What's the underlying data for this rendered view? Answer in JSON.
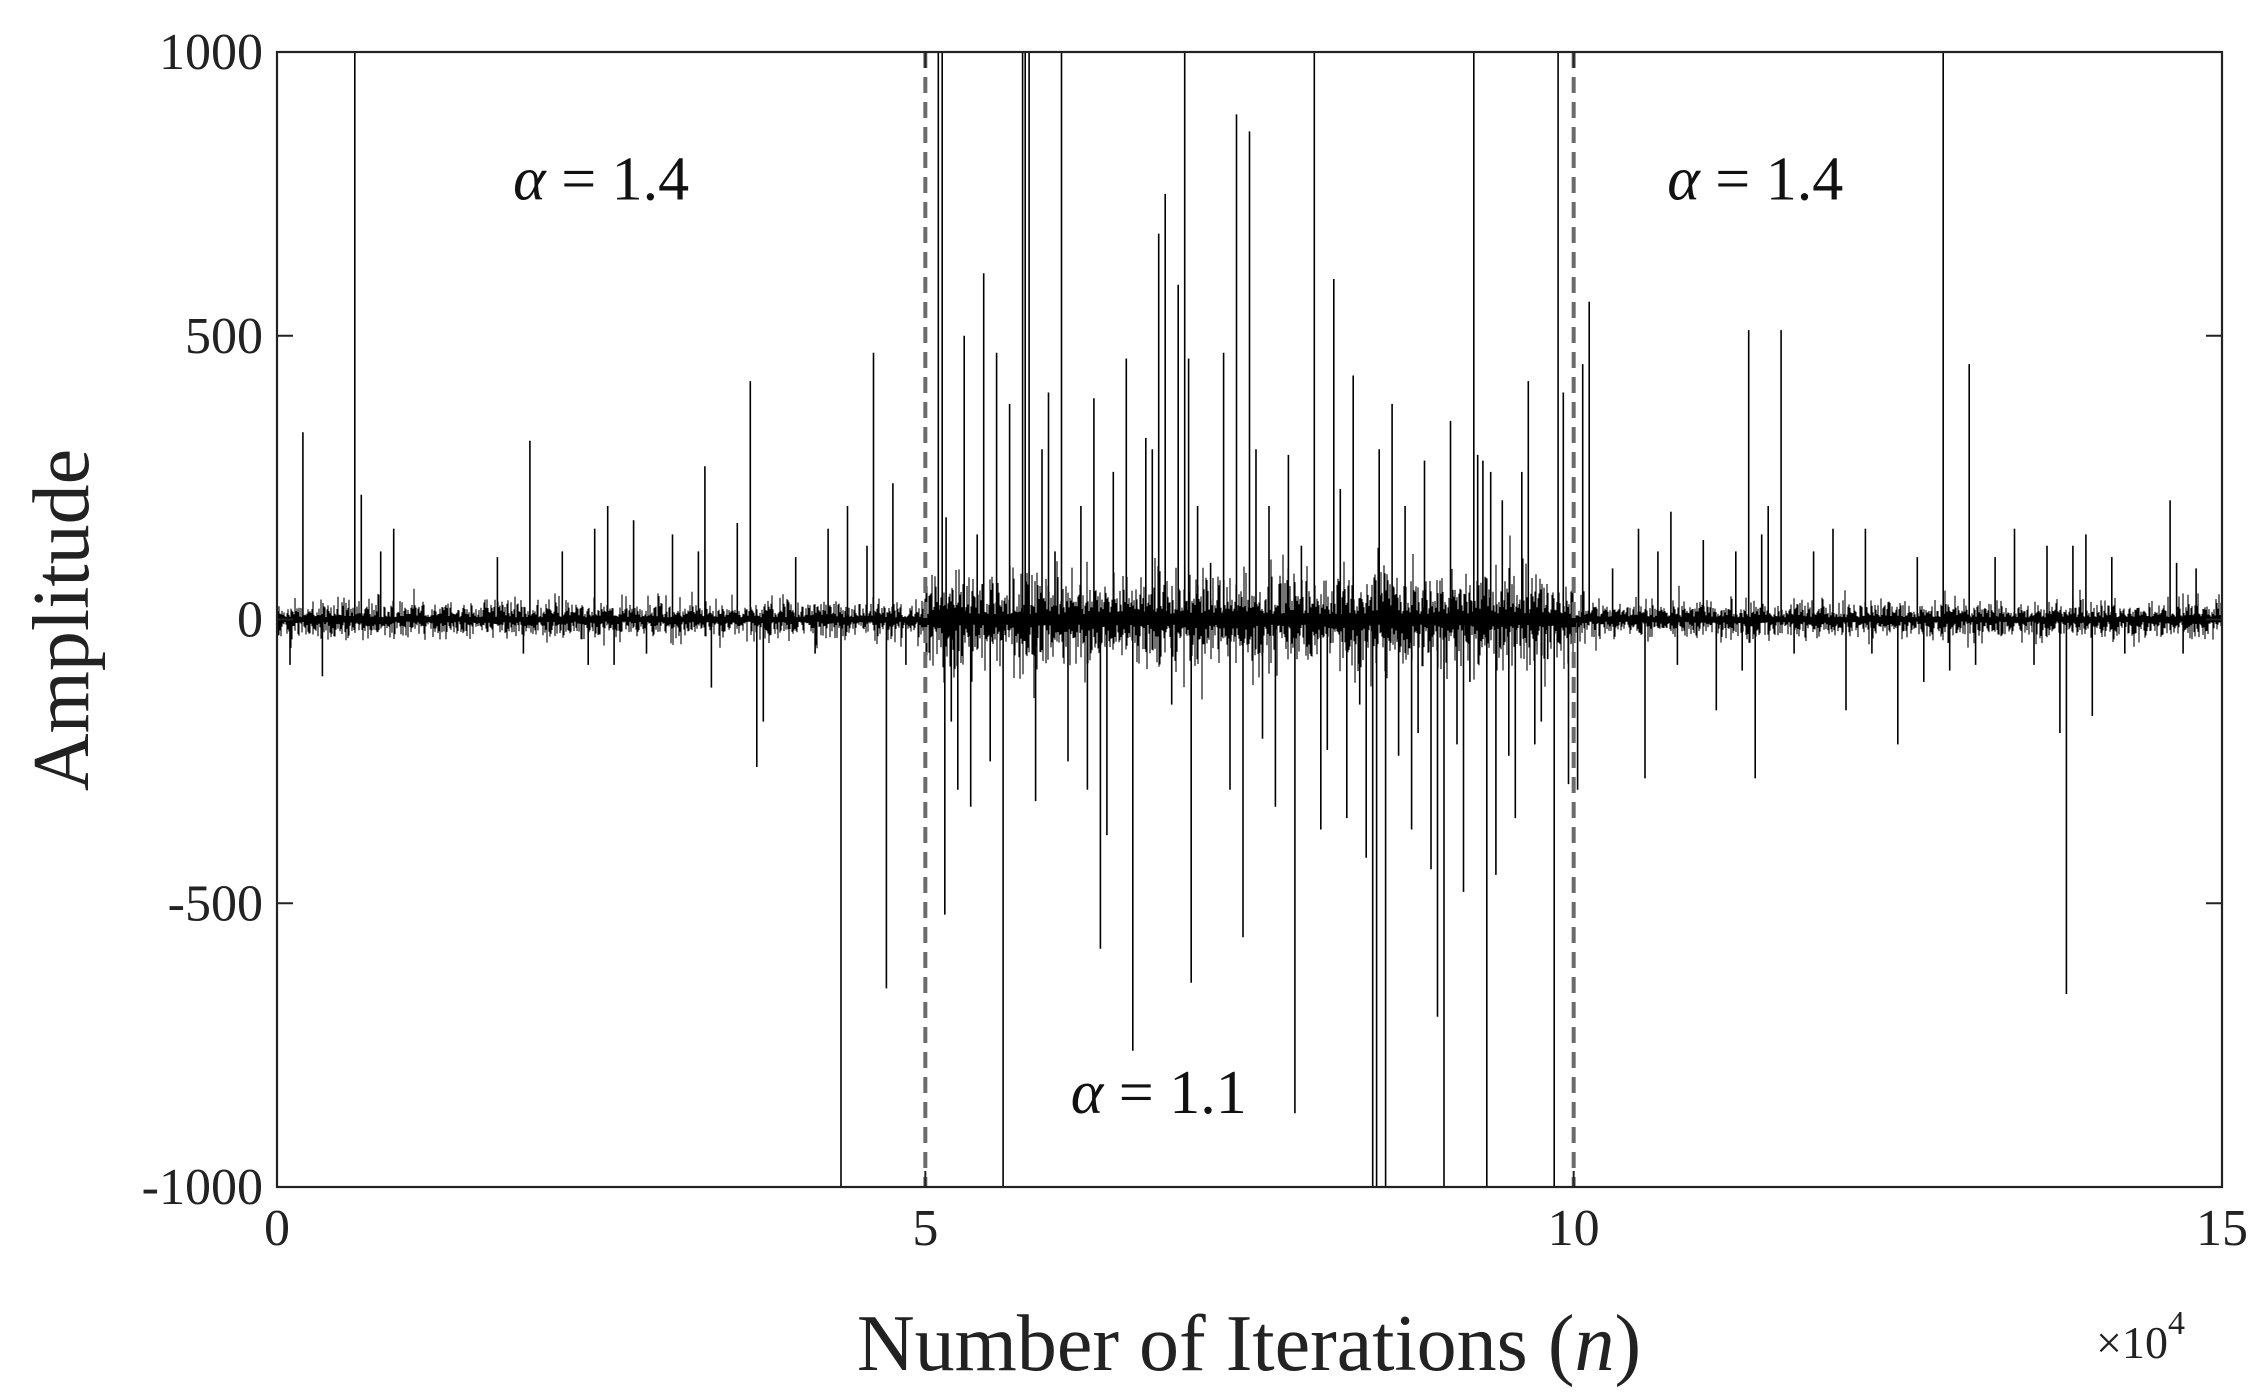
{
  "chart_data": {
    "type": "line",
    "title": "",
    "xlabel": "Number of Iterations",
    "xlabel_var": "n",
    "ylabel": "Amplitude",
    "xlim": [
      0,
      150000
    ],
    "ylim": [
      -1000,
      1000
    ],
    "x_tick_values": [
      0,
      50000,
      100000,
      150000
    ],
    "x_tick_labels": [
      "0",
      "5",
      "10",
      "15"
    ],
    "x_scale_exponent": {
      "base": "×10",
      "power": "4"
    },
    "y_tick_values": [
      -1000,
      -500,
      0,
      500,
      1000
    ],
    "y_tick_labels": [
      "-1000",
      "-500",
      "0",
      "500",
      "1000"
    ],
    "grid": false,
    "line_color": "#000000",
    "boundary_color": "#6b6b6b",
    "boundaries": [
      50000,
      100000
    ],
    "annotations": [
      {
        "text": "α = 1.4",
        "x": 25000,
        "y": 740
      },
      {
        "text": "α = 1.4",
        "x": 114000,
        "y": 740
      },
      {
        "text": "α = 1.1",
        "x": 68000,
        "y": -870
      }
    ],
    "segments": [
      {
        "x_start": 0,
        "x_end": 50000,
        "alpha": 1.4,
        "noise_amplitude": 12
      },
      {
        "x_start": 50000,
        "x_end": 100000,
        "alpha": 1.1,
        "noise_amplitude": 30
      },
      {
        "x_start": 100000,
        "x_end": 150000,
        "alpha": 1.4,
        "noise_amplitude": 12
      }
    ],
    "spikes": [
      [
        2000,
        330
      ],
      [
        6000,
        1000
      ],
      [
        6500,
        220
      ],
      [
        8000,
        120
      ],
      [
        9000,
        160
      ],
      [
        1000,
        -80
      ],
      [
        3500,
        -100
      ],
      [
        17000,
        110
      ],
      [
        19500,
        315
      ],
      [
        19000,
        -60
      ],
      [
        22000,
        120
      ],
      [
        24000,
        -80
      ],
      [
        24500,
        160
      ],
      [
        25500,
        200
      ],
      [
        26000,
        -80
      ],
      [
        27500,
        175
      ],
      [
        28500,
        -60
      ],
      [
        30500,
        150
      ],
      [
        32500,
        120
      ],
      [
        33000,
        270
      ],
      [
        33500,
        -120
      ],
      [
        35500,
        170
      ],
      [
        36500,
        420
      ],
      [
        37000,
        -260
      ],
      [
        37500,
        -180
      ],
      [
        40000,
        110
      ],
      [
        41500,
        -60
      ],
      [
        42500,
        160
      ],
      [
        43500,
        -1000
      ],
      [
        44000,
        200
      ],
      [
        45500,
        130
      ],
      [
        46000,
        470
      ],
      [
        47000,
        -650
      ],
      [
        47500,
        240
      ],
      [
        48500,
        -80
      ],
      [
        51000,
        1000
      ],
      [
        51300,
        1000
      ],
      [
        51500,
        -520
      ],
      [
        51600,
        180
      ],
      [
        52000,
        -180
      ],
      [
        52500,
        -300
      ],
      [
        53000,
        500
      ],
      [
        53500,
        -330
      ],
      [
        54000,
        150
      ],
      [
        54500,
        610
      ],
      [
        55000,
        -250
      ],
      [
        55500,
        470
      ],
      [
        56000,
        -1000
      ],
      [
        56500,
        380
      ],
      [
        57500,
        1000
      ],
      [
        57700,
        1000
      ],
      [
        58000,
        1000
      ],
      [
        58500,
        -320
      ],
      [
        59000,
        300
      ],
      [
        59500,
        400
      ],
      [
        60000,
        120
      ],
      [
        60500,
        1000
      ],
      [
        61000,
        -250
      ],
      [
        62000,
        200
      ],
      [
        62500,
        -300
      ],
      [
        63000,
        390
      ],
      [
        63500,
        -580
      ],
      [
        64000,
        -380
      ],
      [
        64500,
        260
      ],
      [
        65500,
        460
      ],
      [
        66000,
        -760
      ],
      [
        67000,
        320
      ],
      [
        67500,
        300
      ],
      [
        68000,
        680
      ],
      [
        68500,
        750
      ],
      [
        69000,
        -150
      ],
      [
        69500,
        590
      ],
      [
        70000,
        1000
      ],
      [
        70300,
        460
      ],
      [
        70500,
        -640
      ],
      [
        71000,
        200
      ],
      [
        72000,
        100
      ],
      [
        73000,
        470
      ],
      [
        73500,
        -300
      ],
      [
        74000,
        890
      ],
      [
        74500,
        -560
      ],
      [
        75000,
        860
      ],
      [
        75500,
        300
      ],
      [
        76000,
        -210
      ],
      [
        76500,
        200
      ],
      [
        77000,
        -330
      ],
      [
        78000,
        290
      ],
      [
        78500,
        -870
      ],
      [
        79000,
        130
      ],
      [
        80000,
        1000
      ],
      [
        80500,
        -370
      ],
      [
        81000,
        -230
      ],
      [
        81500,
        600
      ],
      [
        82000,
        230
      ],
      [
        82500,
        -350
      ],
      [
        83000,
        430
      ],
      [
        83500,
        -150
      ],
      [
        84000,
        -420
      ],
      [
        84500,
        -1000
      ],
      [
        84800,
        -1000
      ],
      [
        85000,
        300
      ],
      [
        85500,
        -1000
      ],
      [
        86000,
        380
      ],
      [
        86500,
        -240
      ],
      [
        87000,
        200
      ],
      [
        87500,
        -370
      ],
      [
        88000,
        -200
      ],
      [
        88500,
        280
      ],
      [
        89000,
        -440
      ],
      [
        89500,
        -700
      ],
      [
        90000,
        -1000
      ],
      [
        90500,
        350
      ],
      [
        91000,
        -220
      ],
      [
        91500,
        -480
      ],
      [
        92000,
        -110
      ],
      [
        92300,
        1000
      ],
      [
        92600,
        290
      ],
      [
        93000,
        280
      ],
      [
        93300,
        -1000
      ],
      [
        93600,
        260
      ],
      [
        94000,
        -450
      ],
      [
        94500,
        210
      ],
      [
        95000,
        -240
      ],
      [
        95500,
        -350
      ],
      [
        96000,
        260
      ],
      [
        96500,
        420
      ],
      [
        97000,
        -220
      ],
      [
        97500,
        -180
      ],
      [
        98000,
        -70
      ],
      [
        98500,
        -1000
      ],
      [
        98800,
        1000
      ],
      [
        99200,
        400
      ],
      [
        99600,
        -290
      ],
      [
        100300,
        -300
      ],
      [
        100700,
        450
      ],
      [
        101200,
        560
      ],
      [
        103000,
        90
      ],
      [
        105000,
        160
      ],
      [
        105500,
        -280
      ],
      [
        106500,
        120
      ],
      [
        107500,
        190
      ],
      [
        108000,
        -80
      ],
      [
        110000,
        140
      ],
      [
        111000,
        -160
      ],
      [
        112500,
        120
      ],
      [
        113000,
        -90
      ],
      [
        113500,
        510
      ],
      [
        114000,
        -280
      ],
      [
        114500,
        150
      ],
      [
        115000,
        200
      ],
      [
        116000,
        510
      ],
      [
        117000,
        -60
      ],
      [
        118500,
        120
      ],
      [
        120000,
        160
      ],
      [
        121000,
        -160
      ],
      [
        122500,
        160
      ],
      [
        123000,
        -60
      ],
      [
        125000,
        -220
      ],
      [
        126500,
        110
      ],
      [
        127000,
        -110
      ],
      [
        128500,
        1000
      ],
      [
        129000,
        -90
      ],
      [
        130500,
        450
      ],
      [
        131000,
        -80
      ],
      [
        132500,
        110
      ],
      [
        134000,
        160
      ],
      [
        135500,
        -80
      ],
      [
        136500,
        130
      ],
      [
        137500,
        -200
      ],
      [
        138000,
        -660
      ],
      [
        138500,
        130
      ],
      [
        139500,
        150
      ],
      [
        140000,
        -170
      ],
      [
        141500,
        110
      ],
      [
        142500,
        -60
      ],
      [
        146000,
        210
      ],
      [
        146500,
        100
      ],
      [
        147000,
        -60
      ],
      [
        148000,
        90
      ]
    ]
  }
}
